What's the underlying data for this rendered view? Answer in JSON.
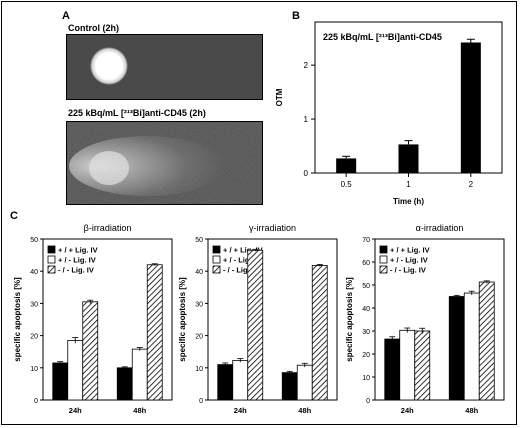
{
  "panels": {
    "A": {
      "label": "A",
      "images": [
        {
          "title": "Control (2h)"
        },
        {
          "title": "225 kBq/mL [²¹³Bi]anti-CD45 (2h)"
        }
      ]
    },
    "B": {
      "label": "B"
    },
    "C": {
      "label": "C"
    }
  },
  "chart_data": [
    {
      "type": "bar",
      "annotation": "225 kBq/mL  [²¹³Bi]anti-CD45",
      "categories": [
        "0.5",
        "1",
        "2"
      ],
      "values": [
        0.27,
        0.53,
        2.42
      ],
      "errors": [
        0.04,
        0.07,
        0.06
      ],
      "xlabel": "Time (h)",
      "ylabel": "OTM",
      "ylim": [
        0,
        2.8
      ],
      "yticks": [
        0,
        1,
        2
      ],
      "bar_color": "#000000"
    },
    {
      "type": "bar",
      "title": "β-irradiation",
      "categories": [
        "24h",
        "48h"
      ],
      "ylabel": "specific apoptosis [%]",
      "ylim": [
        0,
        50
      ],
      "yticks": [
        0,
        10,
        20,
        30,
        40,
        50
      ],
      "legend_position": "top-left",
      "series": [
        {
          "name": "+ / + Lig. IV",
          "fill": "black",
          "values": [
            11.5,
            10.0
          ],
          "errors": [
            0.4,
            0.3
          ]
        },
        {
          "name": "+ / - Lig. IV",
          "fill": "white",
          "values": [
            18.5,
            15.8
          ],
          "errors": [
            0.9,
            0.5
          ]
        },
        {
          "name": "- / - Lig. IV",
          "fill": "hatch",
          "values": [
            30.5,
            42.0
          ],
          "errors": [
            0.5,
            0.3
          ]
        }
      ]
    },
    {
      "type": "bar",
      "title": "γ-irradiation",
      "categories": [
        "24h",
        "48h"
      ],
      "ylabel": "specific apoptosis [%]",
      "ylim": [
        0,
        50
      ],
      "yticks": [
        0,
        10,
        20,
        30,
        40,
        50
      ],
      "legend_position": "top-left",
      "series": [
        {
          "name": "+ / + Lig. IV",
          "fill": "black",
          "values": [
            11.0,
            8.5
          ],
          "errors": [
            0.5,
            0.4
          ]
        },
        {
          "name": "+ / - Lig. IV",
          "fill": "white",
          "values": [
            12.3,
            10.8
          ],
          "errors": [
            0.6,
            0.6
          ]
        },
        {
          "name": "- / - Lig. IV",
          "fill": "hatch",
          "values": [
            46.5,
            41.8
          ],
          "errors": [
            0.3,
            0.3
          ]
        }
      ]
    },
    {
      "type": "bar",
      "title": "α-irradiation",
      "categories": [
        "24h",
        "48h"
      ],
      "ylabel": "specific apoptosis [%]",
      "ylim": [
        0,
        70
      ],
      "yticks": [
        0,
        10,
        20,
        30,
        40,
        50,
        60,
        70
      ],
      "legend_position": "top-left",
      "series": [
        {
          "name": "+ / + Lig. IV",
          "fill": "black",
          "values": [
            26.5,
            45.0
          ],
          "errors": [
            1.0,
            0.5
          ]
        },
        {
          "name": "+ / - Lig. IV",
          "fill": "white",
          "values": [
            30.3,
            46.5
          ],
          "errors": [
            1.0,
            0.8
          ]
        },
        {
          "name": "- / - Lig. IV",
          "fill": "hatch",
          "values": [
            30.0,
            51.3
          ],
          "errors": [
            1.2,
            0.5
          ]
        }
      ]
    }
  ]
}
